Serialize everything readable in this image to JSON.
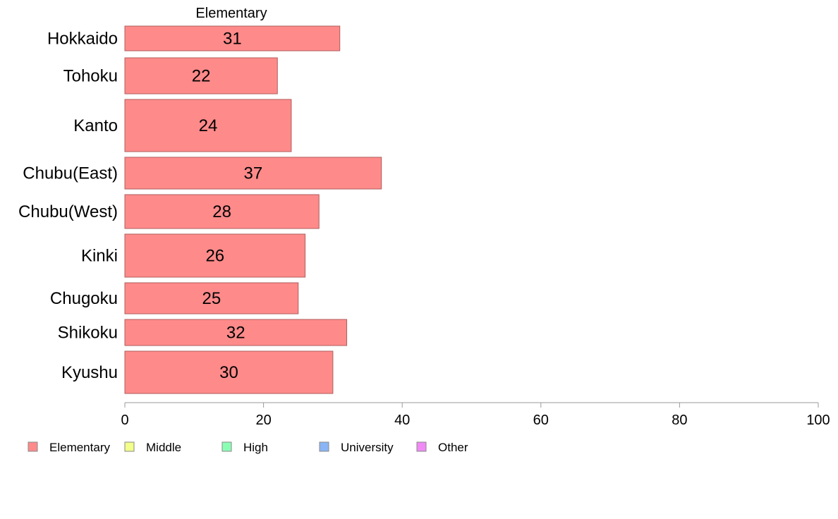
{
  "chart_data": {
    "type": "bar",
    "orientation": "horizontal",
    "title": "Elementary",
    "categories": [
      "Hokkaido",
      "Tohoku",
      "Kanto",
      "Chubu(East)",
      "Chubu(West)",
      "Kinki",
      "Chugoku",
      "Shikoku",
      "Kyushu"
    ],
    "series": [
      {
        "name": "Elementary",
        "values": [
          31,
          22,
          24,
          37,
          28,
          26,
          25,
          32,
          30
        ],
        "color": "#ff8a8a"
      }
    ],
    "xlim": [
      0,
      100
    ],
    "xticks": [
      0,
      20,
      40,
      60,
      80,
      100
    ],
    "grid": false,
    "legend": {
      "position": "bottom-left",
      "entries": [
        {
          "label": "Elementary",
          "color": "#ff8a8a"
        },
        {
          "label": "Middle",
          "color": "#f2ff8a"
        },
        {
          "label": "High",
          "color": "#8affb4"
        },
        {
          "label": "University",
          "color": "#8ab4f5"
        },
        {
          "label": "Other",
          "color": "#f08af5"
        }
      ]
    }
  }
}
